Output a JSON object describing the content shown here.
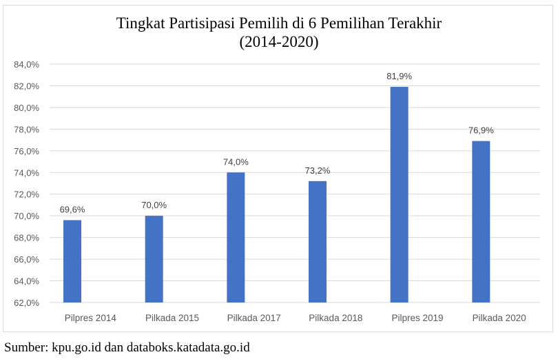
{
  "chart_data": {
    "type": "bar",
    "title_line1": "Tingkat Partisipasi Pemilih di 6 Pemilihan Terakhir",
    "title_line2": "(2014-2020)",
    "categories": [
      "Pilpres 2014",
      "Pilkada 2015",
      "Pilkada 2017",
      "Pilkada 2018",
      "Pilpres 2019",
      "Pilkada 2020"
    ],
    "values": [
      69.6,
      70.0,
      74.0,
      73.2,
      81.9,
      76.9
    ],
    "data_labels": [
      "69,6%",
      "70,0%",
      "74,0%",
      "73,2%",
      "81,9%",
      "76,9%"
    ],
    "yticks": [
      62,
      64,
      66,
      68,
      70,
      72,
      74,
      76,
      78,
      80,
      82,
      84
    ],
    "ytick_labels": [
      "62,0%",
      "64,0%",
      "66,0%",
      "68,0%",
      "70,0%",
      "72,0%",
      "74,0%",
      "76,0%",
      "78,0%",
      "80,0%",
      "82,0%",
      "84,0%"
    ],
    "ylim": [
      62,
      84
    ],
    "xlabel": "",
    "ylabel": "",
    "grid": true,
    "bar_color": "#4472c4"
  },
  "source": "Sumber: kpu.go.id dan databoks.katadata.go.id"
}
